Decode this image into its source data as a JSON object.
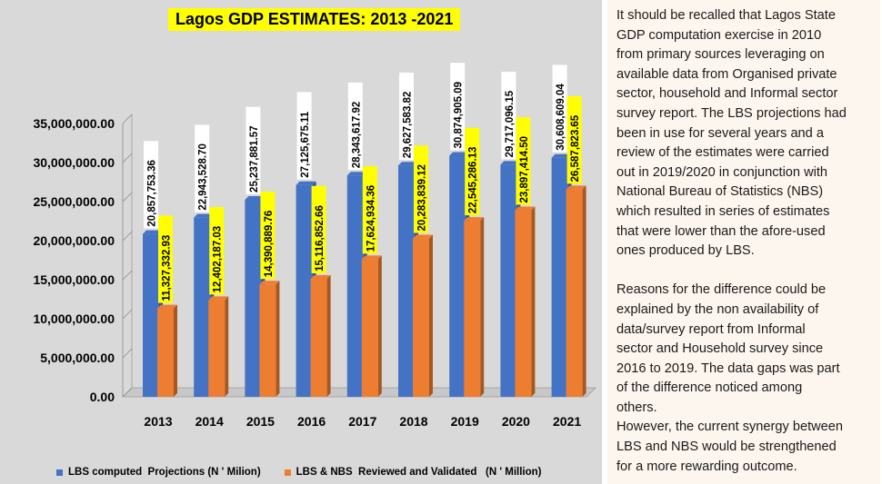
{
  "chart_data": {
    "type": "bar",
    "title": "Lagos GDP ESTIMATES: 2013 -2021",
    "categories": [
      "2013",
      "2014",
      "2015",
      "2016",
      "2017",
      "2018",
      "2019",
      "2020",
      "2021"
    ],
    "series": [
      {
        "name": "LBS computed  Projections (N ' Milion)",
        "color": "#4472c4",
        "values": [
          20857753.36,
          22943528.7,
          25237881.57,
          27125675.11,
          28343617.92,
          29627583.82,
          30874905.09,
          29717096.15,
          30608609.04
        ],
        "labels": [
          "20,857,753.36",
          "22,943,528.70",
          "25,237,881.57",
          "27,125,675.11",
          "28,343,617.92",
          "29,627,583.82",
          "30,874,905.09",
          "29,717,096.15",
          "30,608,609.04"
        ]
      },
      {
        "name": "LBS & NBS  Reviewed and Validated   (N ' Million)",
        "color": "#ed7d31",
        "values": [
          11327332.93,
          12402187.03,
          14390889.76,
          15116852.66,
          17624934.36,
          20283839.12,
          22545286.13,
          23897414.5,
          26587823.65
        ],
        "labels": [
          "11,327,332.93",
          "12,402,187.03",
          "14,390,889.76",
          "15,116,852.66",
          "17,624,934.36",
          "20,283,839.12",
          "22,545,286.13",
          "23,897,414.50",
          "26,587,823.65"
        ]
      }
    ],
    "yticks": [
      "0.00",
      "5,000,000.00",
      "10,000,000.00",
      "15,000,000.00",
      "20,000,000.00",
      "25,000,000.00",
      "30,000,000.00",
      "35,000,000.00"
    ],
    "ylim": [
      0,
      35000000
    ],
    "grid": false,
    "legend_position": "bottom",
    "label_highlight_color": "#ffff00"
  },
  "commentary": {
    "paragraph1": "It should be recalled that Lagos State\nGDP computation exercise in 2010\nfrom primary sources leveraging on\navailable data from Organised private\nsector, household and Informal sector\nsurvey report. The LBS projections had\nbeen in use for several years and a\nreview of the estimates were carried\nout in 2019/2020 in conjunction with\nNational Bureau of Statistics (NBS)\nwhich resulted in series of estimates\nthat were lower than the afore-used\nones produced by LBS.",
    "paragraph2": "Reasons for the difference could be\nexplained by the non availability of\ndata/survey report from  Informal\nsector  and Household survey since\n2016 to 2019.  The data gaps was part\nof the difference noticed among\nothers.",
    "paragraph3": "However, the current synergy between\nLBS and NBS would be strengthened\nfor a more rewarding outcome."
  }
}
